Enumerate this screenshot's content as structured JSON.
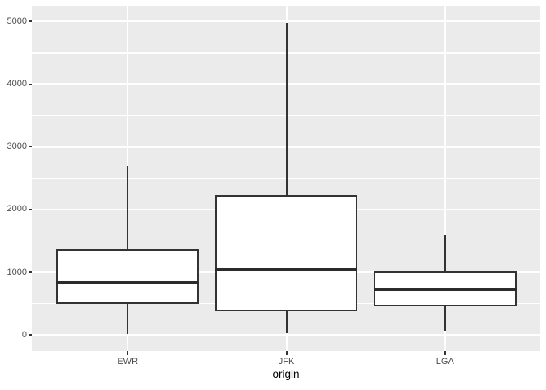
{
  "chart_data": {
    "type": "boxplot",
    "title": "",
    "xlabel": "origin",
    "ylabel": "",
    "categories": [
      "EWR",
      "JFK",
      "LGA"
    ],
    "series": [
      {
        "name": "EWR",
        "min": 20,
        "q1": 490,
        "median": 840,
        "q3": 1360,
        "max": 2700,
        "outliers": []
      },
      {
        "name": "JFK",
        "min": 30,
        "q1": 380,
        "median": 1040,
        "q3": 2230,
        "max": 4980,
        "outliers": []
      },
      {
        "name": "LGA",
        "min": 70,
        "q1": 460,
        "median": 730,
        "q3": 1010,
        "max": 1590,
        "outliers": []
      }
    ],
    "y_axis": {
      "tick_labels": [
        "0",
        "1000",
        "2000",
        "3000",
        "4000",
        "5000"
      ],
      "tick_values": [
        0,
        1000,
        2000,
        3000,
        4000,
        5000
      ],
      "minor_tick_values": [
        500,
        1500,
        2500,
        3500,
        4500
      ],
      "range": [
        -250,
        5250
      ]
    },
    "x_axis": {
      "title": "origin",
      "tick_labels": [
        "EWR",
        "JFK",
        "LGA"
      ]
    },
    "legend": "none",
    "grid": {
      "horizontal": "major+minor",
      "vertical": "major-at-categories"
    },
    "style": {
      "panel_background": "#EBEBEB",
      "grid_color": "#FFFFFF",
      "box_fill": "#FFFFFF",
      "box_border_color": "#333333",
      "median_color": "#2B2B2B",
      "whisker_color": "#333333",
      "tick_mark_color": "#333333",
      "tick_label_color": "#4D4D4D",
      "axis_title_color": "#000000"
    }
  }
}
